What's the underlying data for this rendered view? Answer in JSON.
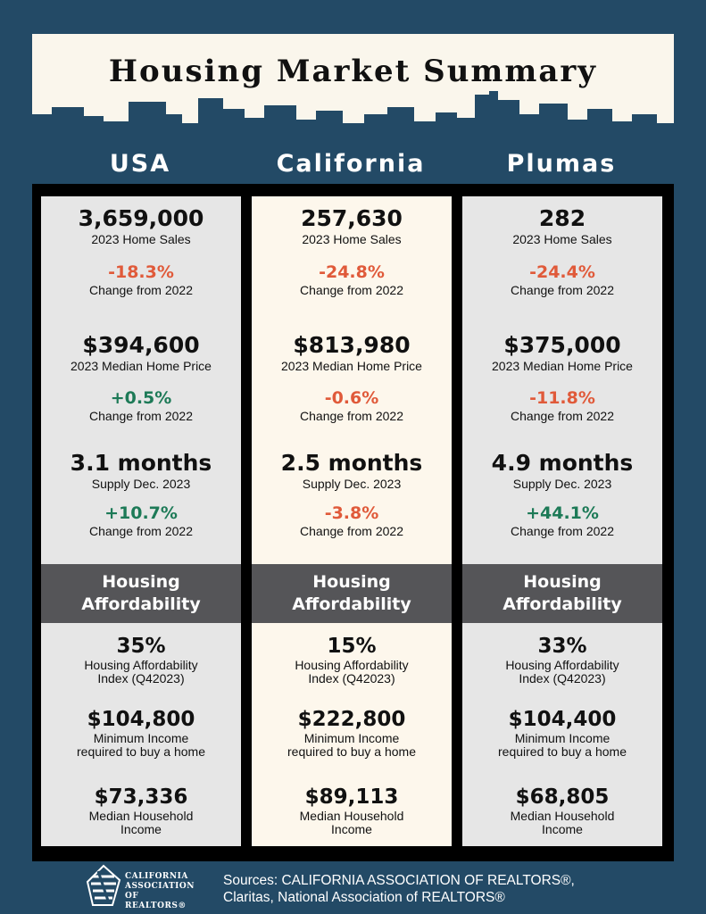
{
  "title": "Housing Market Summary",
  "columns": [
    {
      "name": "USA",
      "home_sales": "3,659,000",
      "home_sales_label": "2023 Home Sales",
      "home_sales_change": "-18.3%",
      "home_sales_change_label": "Change from 2022",
      "median_price": "$394,600",
      "median_price_label": "2023 Median Home Price",
      "median_price_change": "+0.5%",
      "median_price_change_label": "Change from 2022",
      "supply": "3.1 months",
      "supply_label": "Supply Dec. 2023",
      "supply_change": "+10.7%",
      "supply_change_label": "Change from 2022",
      "afford_heading_1": "Housing",
      "afford_heading_2": "Affordability",
      "hai": "35%",
      "hai_label_1": "Housing Affordability",
      "hai_label_2": "Index (Q42023)",
      "min_income": "$104,800",
      "min_income_label_1": "Minimum Income",
      "min_income_label_2": "required to buy a home",
      "household_income": "$73,336",
      "household_income_label_1": "Median Household",
      "household_income_label_2": "Income"
    },
    {
      "name": "California",
      "home_sales": "257,630",
      "home_sales_label": "2023 Home Sales",
      "home_sales_change": "-24.8%",
      "home_sales_change_label": "Change from 2022",
      "median_price": "$813,980",
      "median_price_label": "2023 Median Home Price",
      "median_price_change": "-0.6%",
      "median_price_change_label": "Change from 2022",
      "supply": "2.5 months",
      "supply_label": "Supply Dec. 2023",
      "supply_change": "-3.8%",
      "supply_change_label": "Change from 2022",
      "afford_heading_1": "Housing",
      "afford_heading_2": "Affordability",
      "hai": "15%",
      "hai_label_1": "Housing Affordability",
      "hai_label_2": "Index (Q42023)",
      "min_income": "$222,800",
      "min_income_label_1": "Minimum Income",
      "min_income_label_2": "required to buy a home",
      "household_income": "$89,113",
      "household_income_label_1": "Median Household",
      "household_income_label_2": "Income"
    },
    {
      "name": "Plumas",
      "home_sales": "282",
      "home_sales_label": "2023 Home Sales",
      "home_sales_change": "-24.4%",
      "home_sales_change_label": "Change from 2022",
      "median_price": "$375,000",
      "median_price_label": "2023 Median Home Price",
      "median_price_change": "-11.8%",
      "median_price_change_label": "Change from 2022",
      "supply": "4.9 months",
      "supply_label": "Supply Dec. 2023",
      "supply_change": "+44.1%",
      "supply_change_label": "Change from 2022",
      "afford_heading_1": "Housing",
      "afford_heading_2": "Affordability",
      "hai": "33%",
      "hai_label_1": "Housing Affordability",
      "hai_label_2": "Index (Q42023)",
      "min_income": "$104,400",
      "min_income_label_1": "Minimum Income",
      "min_income_label_2": "required to buy a home",
      "household_income": "$68,805",
      "household_income_label_1": "Median Household",
      "household_income_label_2": "Income"
    }
  ],
  "logo": {
    "line1": "CALIFORNIA",
    "line2": "ASSOCIATION",
    "line3": "OF REALTORS®",
    "icon": "car-logo-icon"
  },
  "sources": {
    "line1": "Sources: CALIFORNIA ASSOCIATION OF REALTORS®,",
    "line2": "Claritas, National Association of REALTORS®"
  },
  "colors": {
    "background": "#234a66",
    "banner": "#faf6ec",
    "negative": "#e05a3a",
    "positive": "#1d7a57",
    "affordability_band": "#555558"
  }
}
